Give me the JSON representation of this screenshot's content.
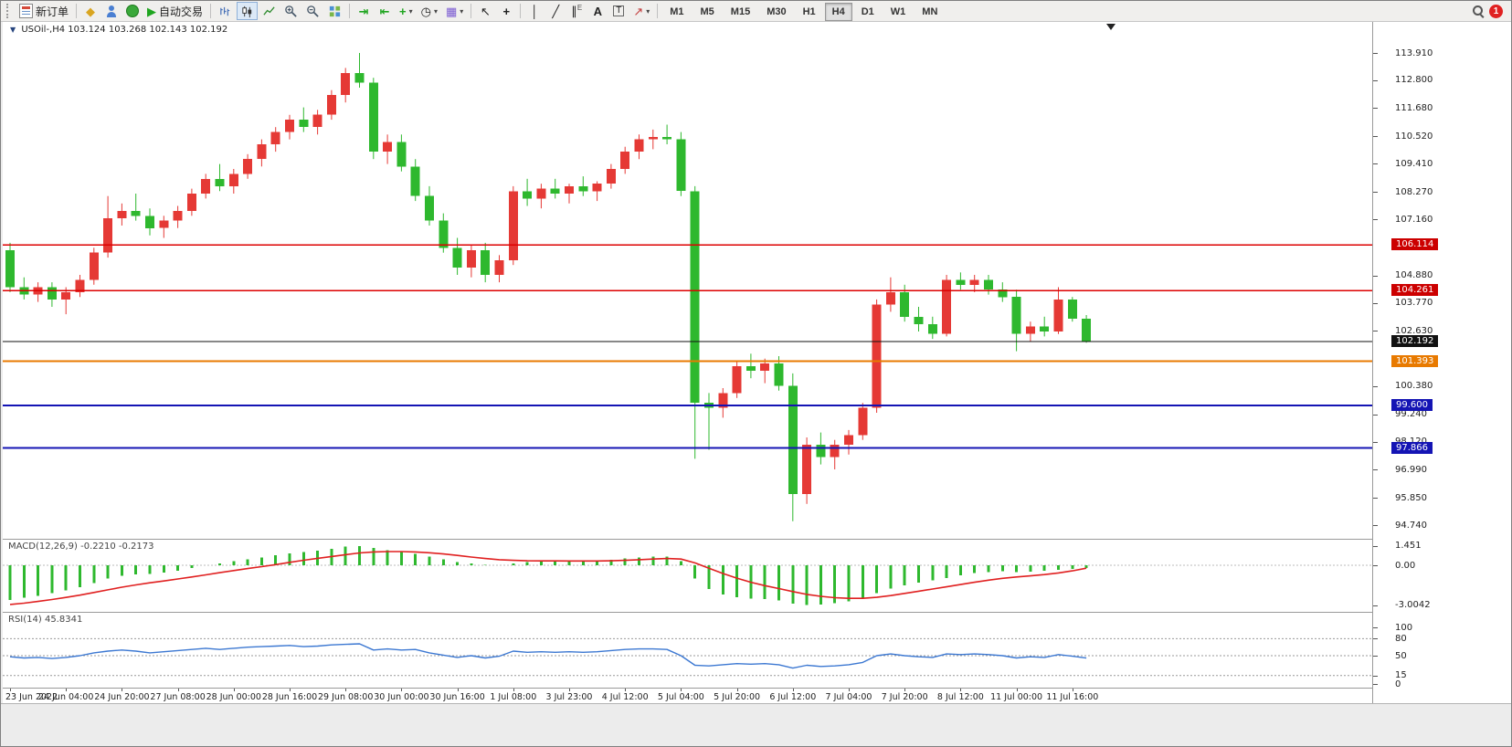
{
  "toolbar": {
    "new_order_label": "新订单",
    "auto_trading_label": "自动交易",
    "timeframes": [
      "M1",
      "M5",
      "M15",
      "M30",
      "H1",
      "H4",
      "D1",
      "W1",
      "MN"
    ],
    "active_timeframe": "H4",
    "badge_count": "1",
    "icons": [
      "toolbar-grip",
      "new-order-icon",
      "diamond-icon",
      "account-icon",
      "globe-icon",
      "play-icon",
      "bar-chart-icon",
      "candlestick-chart-icon",
      "line-chart-icon",
      "zoom-in-icon",
      "zoom-out-icon",
      "tile-windows-icon",
      "auto-scroll-icon",
      "chart-shift-icon",
      "new-chart-icon",
      "period-icon",
      "template-icon",
      "cursor-icon",
      "crosshair-icon",
      "vertical-line-icon",
      "trendline-icon",
      "equidistant-channel-icon",
      "text-icon",
      "text-label-icon",
      "arrows-icon",
      "search-icon",
      "notification-badge"
    ]
  },
  "chart_data": {
    "type": "candlestick",
    "symbol": "USOil-,H4",
    "ohlc_text": "103.124 103.268 102.143 102.192",
    "colors": {
      "up": "#e53935",
      "down": "#2eb82e",
      "macd_hist": "#2eb82e",
      "macd_signal": "#e02020",
      "rsi": "#3c78d2"
    },
    "price_axis": {
      "labels": [
        "113.910",
        "112.800",
        "111.680",
        "110.520",
        "109.410",
        "108.270",
        "107.160",
        "104.880",
        "103.770",
        "102.630",
        "100.380",
        "99.240",
        "98.120",
        "96.990",
        "95.850",
        "94.740"
      ]
    },
    "price_tags": [
      {
        "value": 106.114,
        "label": "106.114",
        "bg": "#cc0000"
      },
      {
        "value": 104.261,
        "label": "104.261",
        "bg": "#cc0000"
      },
      {
        "value": 102.192,
        "label": "102.192",
        "bg": "#111111"
      },
      {
        "value": 101.393,
        "label": "101.393",
        "bg": "#e87a00"
      },
      {
        "value": 99.6,
        "label": "99.600",
        "bg": "#1414b4"
      },
      {
        "value": 97.866,
        "label": "97.866",
        "bg": "#1414b4"
      }
    ],
    "hlines": [
      {
        "value": 106.114,
        "color": "#dd0000",
        "width": 1.4
      },
      {
        "value": 104.261,
        "color": "#dd0000",
        "width": 1.4
      },
      {
        "value": 102.192,
        "color": "#111111",
        "width": 1.4
      },
      {
        "value": 101.393,
        "color": "#e87a00",
        "width": 2
      },
      {
        "value": 99.6,
        "color": "#1414b4",
        "width": 2
      },
      {
        "value": 97.866,
        "color": "#1414b4",
        "width": 2
      }
    ],
    "candles": [
      [
        105.9,
        106.2,
        104.2,
        104.4
      ],
      [
        104.4,
        104.8,
        103.9,
        104.1
      ],
      [
        104.1,
        104.6,
        103.8,
        104.4
      ],
      [
        104.4,
        104.6,
        103.6,
        103.9
      ],
      [
        103.9,
        104.4,
        103.3,
        104.2
      ],
      [
        104.2,
        104.9,
        104.0,
        104.7
      ],
      [
        104.7,
        106.0,
        104.5,
        105.8
      ],
      [
        105.8,
        108.1,
        105.6,
        107.2
      ],
      [
        107.2,
        107.8,
        106.9,
        107.5
      ],
      [
        107.5,
        108.2,
        107.1,
        107.3
      ],
      [
        107.3,
        107.6,
        106.5,
        106.8
      ],
      [
        106.8,
        107.3,
        106.4,
        107.1
      ],
      [
        107.1,
        107.7,
        106.8,
        107.5
      ],
      [
        107.5,
        108.4,
        107.3,
        108.2
      ],
      [
        108.2,
        109.0,
        108.0,
        108.8
      ],
      [
        108.8,
        109.4,
        108.3,
        108.5
      ],
      [
        108.5,
        109.2,
        108.2,
        109.0
      ],
      [
        109.0,
        109.8,
        108.8,
        109.6
      ],
      [
        109.6,
        110.4,
        109.3,
        110.2
      ],
      [
        110.2,
        110.9,
        109.9,
        110.7
      ],
      [
        110.7,
        111.4,
        110.4,
        111.2
      ],
      [
        111.2,
        111.7,
        110.7,
        110.9
      ],
      [
        110.9,
        111.6,
        110.6,
        111.4
      ],
      [
        111.4,
        112.4,
        111.2,
        112.2
      ],
      [
        112.2,
        113.3,
        111.9,
        113.1
      ],
      [
        113.1,
        113.91,
        112.5,
        112.7
      ],
      [
        112.7,
        112.9,
        109.6,
        109.9
      ],
      [
        109.9,
        110.6,
        109.4,
        110.3
      ],
      [
        110.3,
        110.6,
        109.1,
        109.3
      ],
      [
        109.3,
        109.6,
        107.9,
        108.1
      ],
      [
        108.1,
        108.5,
        106.9,
        107.1
      ],
      [
        107.1,
        107.4,
        105.8,
        106.0
      ],
      [
        106.0,
        106.4,
        104.9,
        105.2
      ],
      [
        105.2,
        106.1,
        104.8,
        105.9
      ],
      [
        105.9,
        106.2,
        104.6,
        104.9
      ],
      [
        104.9,
        105.7,
        104.6,
        105.5
      ],
      [
        105.5,
        108.5,
        105.3,
        108.3
      ],
      [
        108.3,
        108.8,
        107.7,
        108.0
      ],
      [
        108.0,
        108.6,
        107.6,
        108.4
      ],
      [
        108.4,
        108.8,
        108.0,
        108.2
      ],
      [
        108.2,
        108.6,
        107.8,
        108.5
      ],
      [
        108.5,
        108.9,
        108.1,
        108.3
      ],
      [
        108.3,
        108.7,
        107.9,
        108.6
      ],
      [
        108.6,
        109.4,
        108.4,
        109.2
      ],
      [
        109.2,
        110.1,
        109.0,
        109.9
      ],
      [
        109.9,
        110.6,
        109.6,
        110.4
      ],
      [
        110.4,
        110.8,
        110.0,
        110.5
      ],
      [
        110.5,
        111.0,
        110.2,
        110.4
      ],
      [
        110.4,
        110.7,
        108.1,
        108.3
      ],
      [
        108.3,
        108.5,
        97.43,
        99.7
      ],
      [
        99.7,
        100.1,
        97.8,
        99.5
      ],
      [
        99.5,
        100.3,
        99.1,
        100.1
      ],
      [
        100.1,
        101.4,
        99.9,
        101.2
      ],
      [
        101.2,
        101.7,
        100.7,
        101.0
      ],
      [
        101.0,
        101.5,
        100.5,
        101.3
      ],
      [
        101.3,
        101.6,
        100.2,
        100.4
      ],
      [
        100.4,
        100.9,
        94.9,
        96.0
      ],
      [
        96.0,
        98.3,
        95.6,
        98.0
      ],
      [
        98.0,
        98.5,
        97.2,
        97.5
      ],
      [
        97.5,
        98.2,
        97.0,
        98.0
      ],
      [
        98.0,
        98.6,
        97.6,
        98.4
      ],
      [
        98.4,
        99.7,
        98.2,
        99.5
      ],
      [
        99.5,
        103.9,
        99.3,
        103.7
      ],
      [
        103.7,
        104.8,
        103.4,
        104.2
      ],
      [
        104.2,
        104.5,
        103.0,
        103.2
      ],
      [
        103.2,
        103.6,
        102.6,
        102.9
      ],
      [
        102.9,
        103.2,
        102.3,
        102.5
      ],
      [
        102.5,
        104.9,
        102.4,
        104.7
      ],
      [
        104.7,
        105.0,
        104.3,
        104.5
      ],
      [
        104.5,
        104.9,
        104.2,
        104.7
      ],
      [
        104.7,
        104.9,
        104.1,
        104.3
      ],
      [
        104.3,
        104.6,
        103.8,
        104.0
      ],
      [
        104.0,
        104.3,
        101.8,
        102.5
      ],
      [
        102.5,
        103.0,
        102.2,
        102.8
      ],
      [
        102.8,
        103.2,
        102.4,
        102.6
      ],
      [
        102.6,
        104.4,
        102.5,
        103.9
      ],
      [
        103.9,
        104.0,
        103.0,
        103.124
      ],
      [
        103.124,
        103.268,
        102.143,
        102.192
      ]
    ],
    "time_labels": [
      "23 Jun 2022",
      "24 Jun 04:00",
      "24 Jun 20:00",
      "27 Jun 08:00",
      "28 Jun 00:00",
      "28 Jun 16:00",
      "29 Jun 08:00",
      "30 Jun 00:00",
      "30 Jun 16:00",
      "1 Jul 08:00",
      "3 Jul 23:00",
      "4 Jul 12:00",
      "5 Jul 04:00",
      "5 Jul 20:00",
      "6 Jul 12:00",
      "7 Jul 04:00",
      "7 Jul 20:00",
      "8 Jul 12:00",
      "11 Jul 00:00",
      "11 Jul 16:00"
    ],
    "macd": {
      "label": "MACD(12,26,9) -0.2210 -0.2173",
      "scale": [
        "1.451",
        "0.00",
        "-3.0042"
      ],
      "histogram": [
        -2.6,
        -2.45,
        -2.3,
        -2.1,
        -1.9,
        -1.65,
        -1.35,
        -1.0,
        -0.8,
        -0.7,
        -0.65,
        -0.55,
        -0.4,
        -0.2,
        0.0,
        0.15,
        0.3,
        0.45,
        0.6,
        0.75,
        0.9,
        1.0,
        1.1,
        1.25,
        1.4,
        1.451,
        1.3,
        1.15,
        1.0,
        0.85,
        0.65,
        0.45,
        0.25,
        0.15,
        0.05,
        0.0,
        0.15,
        0.25,
        0.3,
        0.3,
        0.3,
        0.3,
        0.32,
        0.4,
        0.5,
        0.6,
        0.66,
        0.66,
        0.3,
        -1.0,
        -1.8,
        -2.2,
        -2.4,
        -2.5,
        -2.55,
        -2.65,
        -2.9,
        -3.0042,
        -2.95,
        -2.85,
        -2.7,
        -2.5,
        -2.1,
        -1.75,
        -1.5,
        -1.3,
        -1.15,
        -0.95,
        -0.75,
        -0.6,
        -0.5,
        -0.45,
        -0.5,
        -0.47,
        -0.42,
        -0.35,
        -0.28,
        -0.221
      ],
      "signal": [
        -2.95,
        -2.85,
        -2.72,
        -2.58,
        -2.42,
        -2.25,
        -2.05,
        -1.85,
        -1.65,
        -1.48,
        -1.32,
        -1.18,
        -1.03,
        -0.88,
        -0.72,
        -0.56,
        -0.4,
        -0.25,
        -0.1,
        0.05,
        0.22,
        0.38,
        0.52,
        0.66,
        0.8,
        0.93,
        1.0,
        1.03,
        1.03,
        1.0,
        0.94,
        0.85,
        0.74,
        0.62,
        0.51,
        0.42,
        0.37,
        0.34,
        0.33,
        0.33,
        0.32,
        0.32,
        0.32,
        0.34,
        0.37,
        0.42,
        0.47,
        0.51,
        0.47,
        0.18,
        -0.22,
        -0.62,
        -0.97,
        -1.28,
        -1.53,
        -1.75,
        -1.98,
        -2.19,
        -2.34,
        -2.44,
        -2.49,
        -2.49,
        -2.41,
        -2.28,
        -2.12,
        -1.95,
        -1.79,
        -1.62,
        -1.45,
        -1.28,
        -1.12,
        -0.98,
        -0.88,
        -0.8,
        -0.7,
        -0.58,
        -0.42,
        -0.2173
      ]
    },
    "rsi": {
      "label": "RSI(14) 45.8341",
      "scale": [
        "100",
        "80",
        "50",
        "15",
        "0"
      ],
      "levels": [
        80,
        50,
        15
      ],
      "values": [
        48,
        46,
        47,
        45,
        47,
        50,
        55,
        58,
        60,
        58,
        55,
        57,
        59,
        61,
        63,
        61,
        63,
        65,
        66,
        67,
        68,
        66,
        67,
        69,
        70,
        71,
        60,
        62,
        60,
        61,
        55,
        51,
        47,
        50,
        46,
        49,
        58,
        56,
        57,
        56,
        57,
        56,
        57,
        59,
        61,
        62,
        62,
        61,
        50,
        33,
        32,
        34,
        36,
        35,
        36,
        34,
        28,
        33,
        31,
        32,
        34,
        38,
        50,
        53,
        50,
        48,
        47,
        53,
        52,
        53,
        52,
        50,
        46,
        48,
        47,
        52,
        49,
        45.8341
      ]
    }
  }
}
